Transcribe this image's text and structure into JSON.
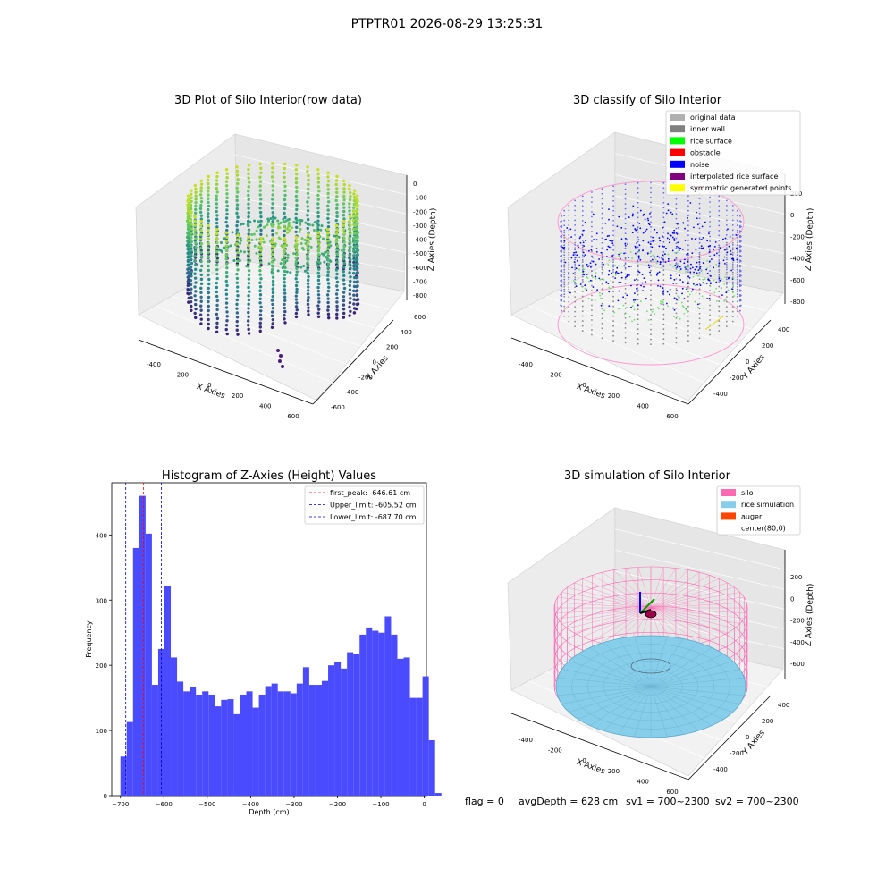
{
  "figure_title": "PTPTR01 2026-08-29 13:25:31",
  "footer": {
    "flag": "flag = 0",
    "avg_depth": "avgDepth = 628 cm",
    "sv1": "sv1 = 700~2300",
    "sv2": "sv2 = 700~2300"
  },
  "chart_data": [
    {
      "type": "scatter",
      "subtype": "3d",
      "title": "3D Plot of Silo Interior(row data)",
      "xlabel": "X Axies",
      "ylabel": "Y Axies",
      "zlabel": "Z Axies (Depth)",
      "x_ticks": [
        "-400",
        "-200",
        "0",
        "200",
        "400",
        "600"
      ],
      "y_ticks": [
        "-600",
        "-400",
        "-200",
        "0",
        "200",
        "400",
        "600"
      ],
      "z_ticks": [
        "0",
        "-100",
        "-200",
        "-300",
        "-400",
        "-500",
        "-600",
        "-700",
        "-800"
      ],
      "colormap": "viridis",
      "colors": {
        "low": "#3b0f70",
        "mid": "#21918c",
        "high": "#c8e020"
      }
    },
    {
      "type": "scatter",
      "subtype": "3d",
      "title": "3D classify of Silo Interior",
      "xlabel": "X Axies",
      "ylabel": "Y Axies",
      "zlabel": "Z Axies (Depth)",
      "x_ticks": [
        "-400",
        "-200",
        "0",
        "200",
        "400",
        "600"
      ],
      "y_ticks": [
        "-400",
        "-200",
        "0",
        "200",
        "400"
      ],
      "z_ticks": [
        "200",
        "0",
        "-200",
        "-400",
        "-600",
        "-800"
      ],
      "legend": [
        {
          "label": "original data",
          "color": "#b0b0b0"
        },
        {
          "label": "inner wall",
          "color": "#808080"
        },
        {
          "label": "rice surface",
          "color": "#00ff00"
        },
        {
          "label": "obstacle",
          "color": "#ff0000"
        },
        {
          "label": "noise",
          "color": "#0000ff"
        },
        {
          "label": "interpolated rice surface",
          "color": "#800080"
        },
        {
          "label": "symmetric generated points",
          "color": "#ffff00"
        }
      ],
      "legend_position": "top-right"
    },
    {
      "type": "bar",
      "subtype": "histogram",
      "title": "Histogram of Z-Axies (Height) Values",
      "xlabel": "Depth (cm)",
      "ylabel": "Frequency",
      "xlim": [
        -720,
        5
      ],
      "ylim": [
        0,
        480
      ],
      "x_ticks": [
        -700,
        -600,
        -500,
        -400,
        -300,
        -200,
        -100,
        0
      ],
      "y_ticks": [
        0,
        100,
        200,
        300,
        400
      ],
      "bin_start": -700,
      "bin_width": 14.5,
      "bar_color": "#4a4aff",
      "values": [
        60,
        113,
        380,
        460,
        402,
        170,
        225,
        322,
        212,
        175,
        160,
        167,
        155,
        160,
        155,
        137,
        147,
        148,
        125,
        155,
        160,
        135,
        155,
        168,
        172,
        160,
        160,
        157,
        172,
        197,
        170,
        170,
        176,
        200,
        205,
        195,
        220,
        218,
        247,
        258,
        253,
        250,
        275,
        247,
        210,
        212,
        150,
        150,
        183,
        85,
        4
      ],
      "lines": [
        {
          "label": "first_peak: -646.61 cm",
          "x": -646.61,
          "color": "#ff0000"
        },
        {
          "label": "Upper_limit: -605.52 cm",
          "x": -605.52,
          "color": "#0000cc"
        },
        {
          "label": "Lower_limit: -687.70 cm",
          "x": -687.7,
          "color": "#0000cc"
        }
      ],
      "legend_position": "top-right"
    },
    {
      "type": "scatter",
      "subtype": "3d-surface",
      "title": "3D simulation of Silo Interior",
      "xlabel": "X Axies",
      "ylabel": "Y Axies",
      "zlabel": "Z Axies (Depth)",
      "x_ticks": [
        "-400",
        "-200",
        "0",
        "200",
        "400",
        "600"
      ],
      "y_ticks": [
        "-400",
        "-200",
        "0",
        "200",
        "400"
      ],
      "z_ticks": [
        "200",
        "0",
        "-200",
        "-400",
        "-600"
      ],
      "legend": [
        {
          "label": "silo",
          "color": "#ff69b4"
        },
        {
          "label": "rice simulation",
          "color": "#87ceeb"
        },
        {
          "label": "auger",
          "color": "#ff4500"
        },
        {
          "label": "center(80,0)",
          "color": ""
        }
      ],
      "legend_position": "top-right"
    }
  ]
}
